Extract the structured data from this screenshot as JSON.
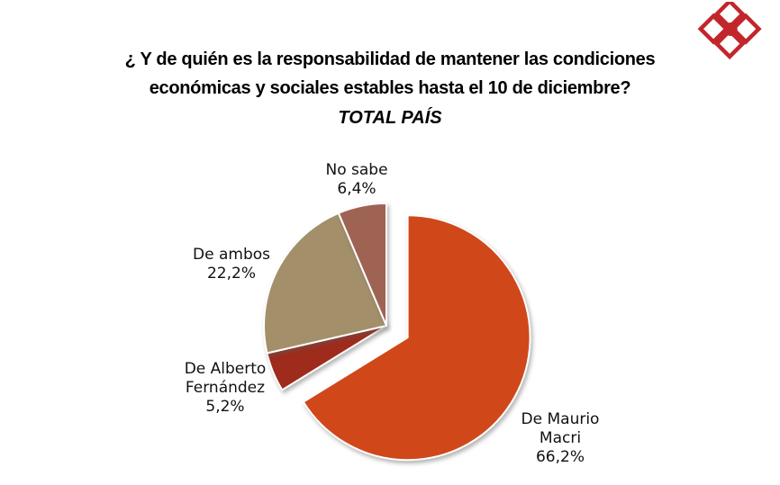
{
  "page": {
    "background": "#ffffff"
  },
  "logo": {
    "semantic": "consultora-logo",
    "color": "#C2262C"
  },
  "header": {
    "title_line1": "¿ Y de quién es la responsabilidad de mantener las condiciones",
    "title_line2": "económicas y sociales estables hasta el 10 de diciembre?",
    "subtitle": "TOTAL PAÍS"
  },
  "chart_data": {
    "type": "pie",
    "title": "¿ Y de quién es la responsabilidad de mantener las condiciones económicas y sociales estables hasta el 10 de diciembre?",
    "subtitle": "TOTAL PAÍS",
    "unit": "percent",
    "direction": "clockwise",
    "start_angle_deg": 0,
    "legend": "none",
    "labels_outside": true,
    "exploded_slice": "De Maurio Macri",
    "slices": [
      {
        "name": "De Maurio Macri",
        "value": 66.2,
        "pct_label": "66,2%",
        "label_lines": [
          "De Maurio",
          "Macri"
        ],
        "color": "#D0481A",
        "exploded": true
      },
      {
        "name": "De Alberto Fernández",
        "value": 5.2,
        "pct_label": "5,2%",
        "label_lines": [
          "De Alberto",
          "Fernández"
        ],
        "color": "#9E2B1B",
        "exploded": false
      },
      {
        "name": "De ambos",
        "value": 22.2,
        "pct_label": "22,2%",
        "label_lines": [
          "De ambos"
        ],
        "color": "#A48F6B",
        "exploded": false
      },
      {
        "name": "No sabe",
        "value": 6.4,
        "pct_label": "6,4%",
        "label_lines": [
          "No sabe"
        ],
        "color": "#9F6354",
        "exploded": false
      }
    ]
  }
}
